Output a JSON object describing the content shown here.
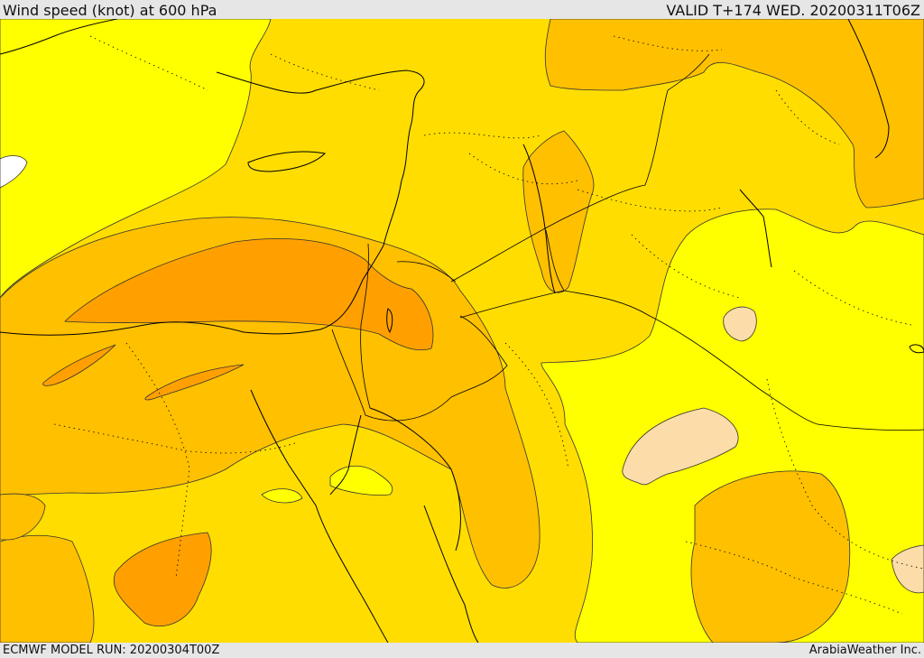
{
  "header": {
    "title": "Wind speed (knot) at 600 hPa",
    "valid": "VALID T+174 WED. 20200311T06Z"
  },
  "footer": {
    "run": "ECMWF MODEL RUN: 20200304T00Z",
    "credit": "ArabiaWeather Inc."
  },
  "map": {
    "fill_colors": {
      "white": "#ffffff",
      "yellow": "#ffff00",
      "gold": "#ffdd00",
      "amber": "#ffc000",
      "orange": "#ffa000",
      "peach": "#fcdca8"
    },
    "line_color": "#000000"
  }
}
